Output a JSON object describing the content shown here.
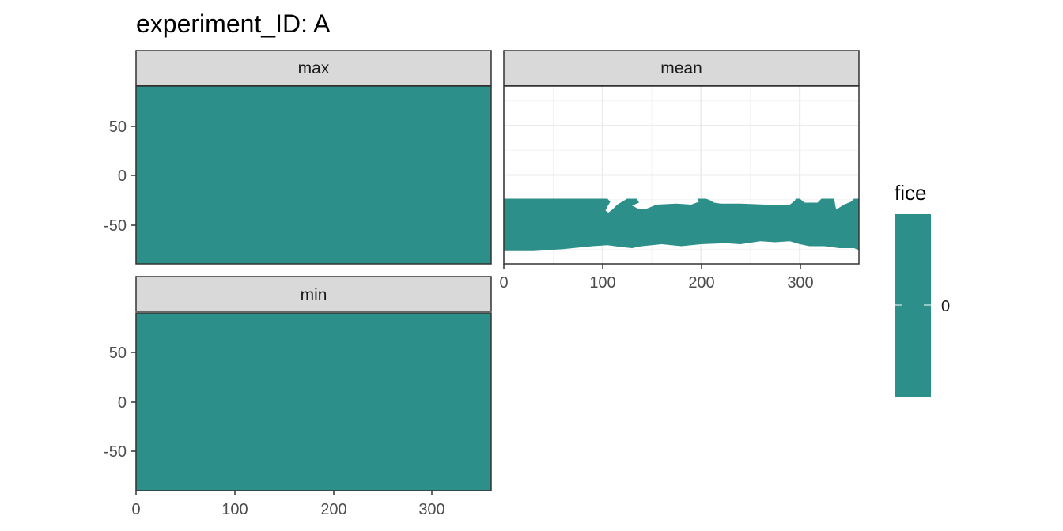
{
  "chart_data": {
    "type": "heatmap",
    "title": "experiment_ID: A",
    "xlabel": "",
    "ylabel": "",
    "xlim": [
      0,
      360
    ],
    "ylim": [
      -90,
      90
    ],
    "x_ticks": [
      0,
      100,
      200,
      300
    ],
    "y_ticks": [
      50,
      0,
      -50
    ],
    "x_tick_labels": [
      "0",
      "100",
      "200",
      "300"
    ],
    "y_tick_labels": [
      "50",
      "0",
      "-50"
    ],
    "grid": true,
    "fill_color": "#2c8f89",
    "panels": [
      {
        "name": "max",
        "coverage": "full",
        "lat_range": [
          -90,
          90
        ]
      },
      {
        "name": "mean",
        "coverage": "southern-ocean",
        "lat_range": [
          -78,
          -24
        ],
        "north_edge": [
          [
            0,
            -24
          ],
          [
            105,
            -24
          ],
          [
            108,
            -27
          ],
          [
            105,
            -32
          ],
          [
            103,
            -36
          ],
          [
            106,
            -38
          ],
          [
            110,
            -35
          ],
          [
            115,
            -30
          ],
          [
            120,
            -27
          ],
          [
            125,
            -24
          ],
          [
            135,
            -24
          ],
          [
            137,
            -28
          ],
          [
            130,
            -31
          ],
          [
            136,
            -34
          ],
          [
            145,
            -34
          ],
          [
            155,
            -30
          ],
          [
            175,
            -29
          ],
          [
            190,
            -30
          ],
          [
            198,
            -27
          ],
          [
            196,
            -24
          ],
          [
            205,
            -24
          ],
          [
            210,
            -26
          ],
          [
            213,
            -28
          ],
          [
            220,
            -29
          ],
          [
            240,
            -29
          ],
          [
            265,
            -30
          ],
          [
            290,
            -30
          ],
          [
            295,
            -26
          ],
          [
            296,
            -24
          ],
          [
            300,
            -24
          ],
          [
            305,
            -28
          ],
          [
            318,
            -28
          ],
          [
            322,
            -24
          ],
          [
            335,
            -24
          ],
          [
            336,
            -31
          ],
          [
            337,
            -35
          ],
          [
            340,
            -33
          ],
          [
            345,
            -30
          ],
          [
            352,
            -27
          ],
          [
            355,
            -24
          ],
          [
            360,
            -24
          ]
        ],
        "south_edge": [
          [
            0,
            -77
          ],
          [
            30,
            -77
          ],
          [
            60,
            -75
          ],
          [
            90,
            -72
          ],
          [
            105,
            -71
          ],
          [
            120,
            -73
          ],
          [
            130,
            -74
          ],
          [
            140,
            -72
          ],
          [
            160,
            -70
          ],
          [
            170,
            -71
          ],
          [
            180,
            -72
          ],
          [
            200,
            -70
          ],
          [
            225,
            -69
          ],
          [
            240,
            -70
          ],
          [
            260,
            -67
          ],
          [
            275,
            -68
          ],
          [
            290,
            -67
          ],
          [
            300,
            -70
          ],
          [
            310,
            -72
          ],
          [
            325,
            -72
          ],
          [
            340,
            -74
          ],
          [
            355,
            -74
          ],
          [
            360,
            -76
          ]
        ]
      },
      {
        "name": "min",
        "coverage": "full",
        "lat_range": [
          -90,
          90
        ]
      }
    ],
    "legend": {
      "title": "fice",
      "labels": [
        "0"
      ],
      "placement": "right"
    }
  }
}
